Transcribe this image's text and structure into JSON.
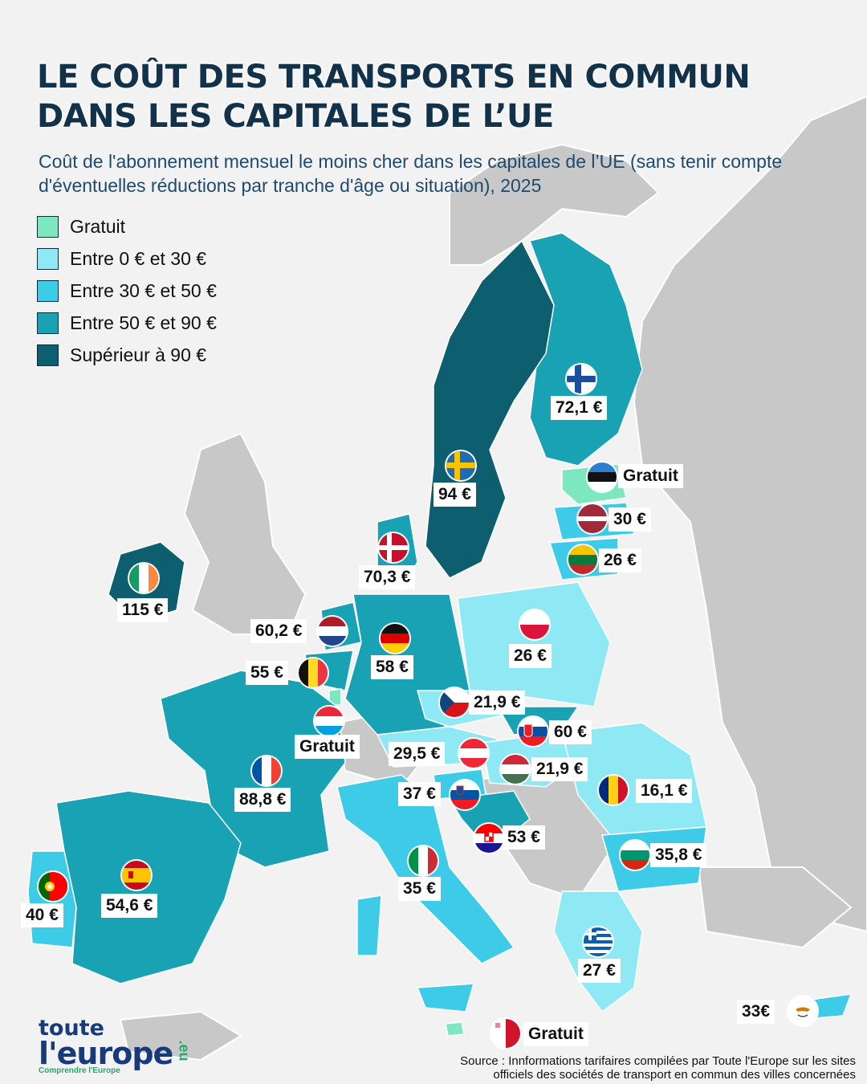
{
  "title_line1": "LE COÛT DES TRANSPORTS EN COMMUN",
  "title_line2": "DANS LES CAPITALES DE L’UE",
  "subtitle": "Coût de l'abonnement mensuel le moins cher dans les capitales de l’UE (sans tenir compte d'éventuelles réductions par tranche d'âge ou situation), 2025",
  "legend": [
    {
      "label": "Gratuit",
      "color": "#7de8c0"
    },
    {
      "label": "Entre 0 € et 30 €",
      "color": "#8fe9f5"
    },
    {
      "label": "Entre 30 € et 50 €",
      "color": "#3ecbe8"
    },
    {
      "label": "Entre 50 € et 90 €",
      "color": "#18a2b4"
    },
    {
      "label": "Supérieur à 90 €",
      "color": "#0d5e6f"
    }
  ],
  "countries": [
    {
      "name": "Finlande",
      "value": "72,1 €",
      "category": "Entre 50 € et 90 €",
      "flag": "finland-flag"
    },
    {
      "name": "Suède",
      "value": "94 €",
      "category": "Supérieur à 90 €",
      "flag": "sweden-flag"
    },
    {
      "name": "Estonie",
      "value": "Gratuit",
      "category": "Gratuit",
      "flag": "estonia-flag"
    },
    {
      "name": "Lettonie",
      "value": "30 €",
      "category": "Entre 0 € et 30 €",
      "flag": "latvia-flag"
    },
    {
      "name": "Lituanie",
      "value": "26 €",
      "category": "Entre 0 € et 30 €",
      "flag": "lithuania-flag"
    },
    {
      "name": "Danemark",
      "value": "70,3 €",
      "category": "Entre 50 € et 90 €",
      "flag": "denmark-flag"
    },
    {
      "name": "Irlande",
      "value": "115 €",
      "category": "Supérieur à 90 €",
      "flag": "ireland-flag"
    },
    {
      "name": "Pays-Bas",
      "value": "60,2 €",
      "category": "Entre 50 € et 90 €",
      "flag": "netherlands-flag"
    },
    {
      "name": "Allemagne",
      "value": "58 €",
      "category": "Entre 50 € et 90 €",
      "flag": "germany-flag"
    },
    {
      "name": "Pologne",
      "value": "26 €",
      "category": "Entre 0 € et 30 €",
      "flag": "poland-flag"
    },
    {
      "name": "Belgique",
      "value": "55 €",
      "category": "Entre 50 € et 90 €",
      "flag": "belgium-flag"
    },
    {
      "name": "Tchéquie",
      "value": "21,9 €",
      "category": "Entre 0 € et 30 €",
      "flag": "czechia-flag"
    },
    {
      "name": "Slovaquie",
      "value": "60 €",
      "category": "Entre 50 € et 90 €",
      "flag": "slovakia-flag"
    },
    {
      "name": "Luxembourg",
      "value": "Gratuit",
      "category": "Gratuit",
      "flag": "luxembourg-flag"
    },
    {
      "name": "Autriche",
      "value": "29,5 €",
      "category": "Entre 0 € et 30 €",
      "flag": "austria-flag"
    },
    {
      "name": "Hongrie",
      "value": "21,9 €",
      "category": "Entre 0 € et 30 €",
      "flag": "hungary-flag"
    },
    {
      "name": "France",
      "value": "88,8 €",
      "category": "Entre 50 € et 90 €",
      "flag": "france-flag"
    },
    {
      "name": "Roumanie",
      "value": "16,1 €",
      "category": "Entre 0 € et 30 €",
      "flag": "romania-flag"
    },
    {
      "name": "Slovénie",
      "value": "37 €",
      "category": "Entre 30 € et 50 €",
      "flag": "slovenia-flag"
    },
    {
      "name": "Croatie",
      "value": "53 €",
      "category": "Entre 50 € et 90 €",
      "flag": "croatia-flag"
    },
    {
      "name": "Bulgarie",
      "value": "35,8 €",
      "category": "Entre 30 € et 50 €",
      "flag": "bulgaria-flag"
    },
    {
      "name": "Italie",
      "value": "35 €",
      "category": "Entre 30 € et 50 €",
      "flag": "italy-flag"
    },
    {
      "name": "Portugal",
      "value": "40 €",
      "category": "Entre 30 € et 50 €",
      "flag": "portugal-flag"
    },
    {
      "name": "Espagne",
      "value": "54,6 €",
      "category": "Entre 50 € et 90 €",
      "flag": "spain-flag"
    },
    {
      "name": "Grèce",
      "value": "27 €",
      "category": "Entre 0 € et 30 €",
      "flag": "greece-flag"
    },
    {
      "name": "Chypre",
      "value": "33€",
      "category": "Entre 30 € et 50 €",
      "flag": "cyprus-flag"
    },
    {
      "name": "Malte",
      "value": "Gratuit",
      "category": "Gratuit",
      "flag": "malta-flag"
    }
  ],
  "logo": {
    "line1": "toute",
    "line2": "l'europe",
    "tagline": "Comprendre l'Europe",
    "suffix": ".eu"
  },
  "source_line1": "Source : Innformations tarifaires compilées par Toute l'Europe sur les sites",
  "source_line2": "officiels des sociétés de transport en commun des villes concernées"
}
